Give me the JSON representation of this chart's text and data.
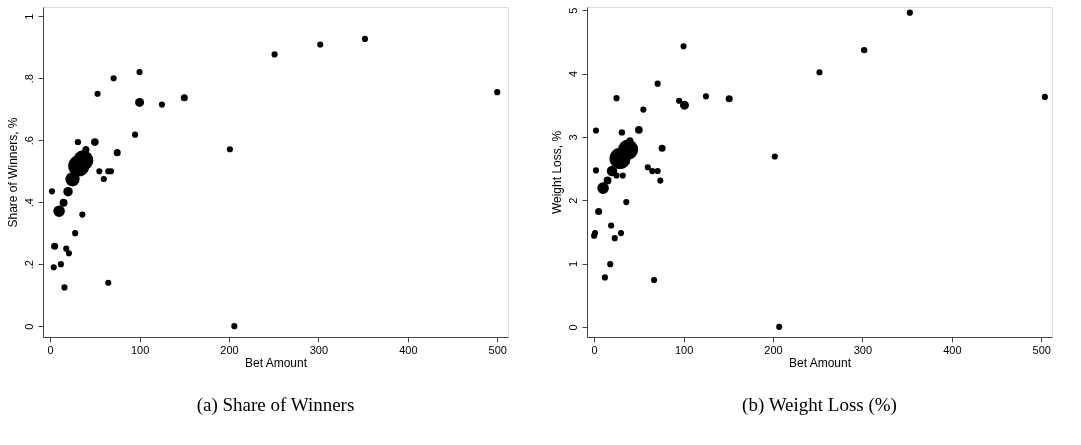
{
  "chart_data": [
    {
      "type": "bubble",
      "title": "(a) Share of Winners",
      "xlabel": "Bet Amount",
      "ylabel": "Share of Winners, %",
      "color": "#000000",
      "xlim": [
        -8,
        512
      ],
      "ylim": [
        -0.035,
        1.03
      ],
      "xticks": [
        0,
        100,
        200,
        300,
        400,
        500
      ],
      "yticks": [
        0,
        {
          "value": 0.2,
          "label": ".2"
        },
        {
          "value": 0.4,
          "label": ".4"
        },
        {
          "value": 0.6,
          "label": ".6"
        },
        {
          "value": 0.8,
          "label": ".8"
        },
        1
      ],
      "x": [
        10,
        15,
        20,
        25,
        32,
        37,
        40,
        50,
        31,
        75,
        100,
        150,
        5,
        100,
        71,
        53,
        125,
        95,
        65,
        68,
        55,
        60,
        36,
        28,
        18,
        21,
        12,
        4,
        16,
        65,
        2,
        251,
        302,
        352,
        500,
        201,
        206
      ],
      "values": [
        0.371,
        0.398,
        0.434,
        0.474,
        0.517,
        0.535,
        0.57,
        0.594,
        0.594,
        0.56,
        0.722,
        0.737,
        0.258,
        0.82,
        0.8,
        0.75,
        0.715,
        0.618,
        0.5,
        0.5,
        0.5,
        0.475,
        0.36,
        0.3,
        0.25,
        0.235,
        0.2,
        0.19,
        0.125,
        0.14,
        0.435,
        0.877,
        0.909,
        0.927,
        0.755,
        0.571,
        0.0
      ],
      "sizes": [
        0.3,
        0.14,
        0.2,
        0.45,
        1,
        0.9,
        0.11,
        0.13,
        0.09,
        0.11,
        0.18,
        0.11,
        0.11,
        0.085,
        0.085,
        0.085,
        0.085,
        0.085,
        0.085,
        0.085,
        0.085,
        0.085,
        0.085,
        0.085,
        0.085,
        0.085,
        0.085,
        0.085,
        0.085,
        0.085,
        0.085,
        0.085,
        0.085,
        0.085,
        0.085,
        0.085,
        0.085
      ]
    },
    {
      "type": "bubble",
      "title": "(b) Weight Loss (%)",
      "xlabel": "Bet Amount",
      "ylabel": "Weight Loss, %",
      "color": "#000000",
      "xlim": [
        -8,
        512
      ],
      "ylim": [
        -0.16,
        5.05
      ],
      "xticks": [
        0,
        100,
        200,
        300,
        400,
        500
      ],
      "yticks": [
        0,
        1,
        2,
        3,
        4,
        5
      ],
      "x": [
        10,
        15,
        20,
        29,
        38,
        40,
        31,
        50,
        76,
        101,
        5,
        151,
        302,
        353,
        252,
        504,
        202,
        207,
        100,
        71,
        125,
        95,
        55,
        25,
        2,
        60,
        65,
        71,
        74,
        36,
        19,
        30,
        23,
        1,
        0,
        18,
        12,
        67,
        2,
        32,
        25
      ],
      "values": [
        2.19,
        2.31,
        2.46,
        2.66,
        2.8,
        2.94,
        3.07,
        3.11,
        2.82,
        3.5,
        1.82,
        3.6,
        4.37,
        4.96,
        4.02,
        3.63,
        2.69,
        0.0,
        4.43,
        3.84,
        3.64,
        3.57,
        3.43,
        3.61,
        3.1,
        2.52,
        2.46,
        2.46,
        2.31,
        1.97,
        1.6,
        1.48,
        1.4,
        1.48,
        1.44,
        0.99,
        0.78,
        0.74,
        2.47,
        2.39,
        2.39
      ],
      "sizes": [
        0.3,
        0.14,
        0.25,
        1,
        0.9,
        0.11,
        0.09,
        0.13,
        0.11,
        0.18,
        0.11,
        0.11,
        0.09,
        0.085,
        0.085,
        0.085,
        0.085,
        0.085,
        0.085,
        0.085,
        0.085,
        0.085,
        0.085,
        0.085,
        0.085,
        0.085,
        0.085,
        0.085,
        0.085,
        0.085,
        0.085,
        0.085,
        0.085,
        0.085,
        0.085,
        0.085,
        0.085,
        0.085,
        0.085,
        0.085,
        0.085
      ]
    }
  ]
}
